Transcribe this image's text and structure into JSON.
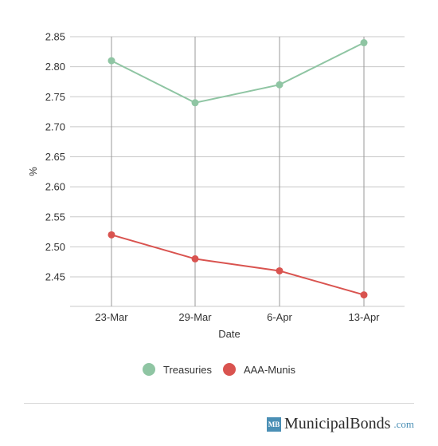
{
  "chart_data": {
    "type": "line",
    "categories": [
      "23-Mar",
      "29-Mar",
      "6-Apr",
      "13-Apr"
    ],
    "series": [
      {
        "name": "Treasuries",
        "values": [
          2.81,
          2.74,
          2.77,
          2.84
        ],
        "color": "#8fc5a3"
      },
      {
        "name": "AAA-Munis",
        "values": [
          2.52,
          2.48,
          2.46,
          2.42
        ],
        "color": "#d9534f"
      }
    ],
    "yticks": [
      "2.45",
      "2.50",
      "2.55",
      "2.60",
      "2.65",
      "2.70",
      "2.75",
      "2.80",
      "2.85"
    ],
    "ylim": [
      2.4,
      2.85
    ],
    "xlabel": "Date",
    "ylabel": "%",
    "grid": true,
    "legend_position": "bottom-center"
  },
  "branding": {
    "badge": "MB",
    "name": "MunicipalBonds",
    "suffix": ".com"
  }
}
